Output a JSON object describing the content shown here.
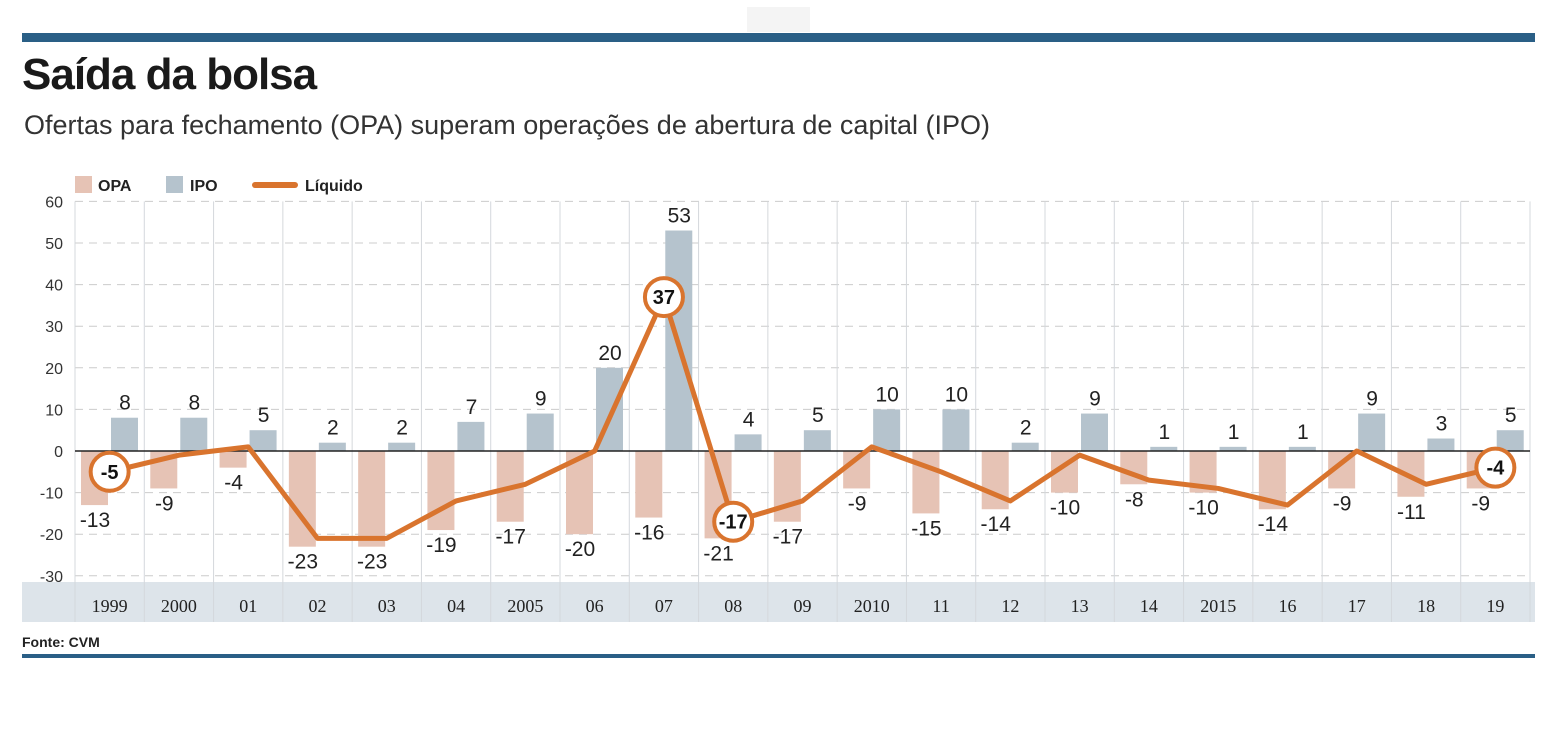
{
  "header": {
    "title": "Saída da bolsa",
    "subtitle": "Ofertas para fechamento (OPA) superam operações de abertura de capital (IPO)"
  },
  "footer": {
    "source": "Fonte: CVM"
  },
  "chart_data": {
    "type": "bar",
    "title": "Saída da bolsa",
    "subtitle": "Ofertas para fechamento (OPA) superam operações de abertura de capital (IPO)",
    "categories": [
      "1999",
      "2000",
      "01",
      "02",
      "03",
      "04",
      "2005",
      "06",
      "07",
      "08",
      "09",
      "2010",
      "11",
      "12",
      "13",
      "14",
      "2015",
      "16",
      "17",
      "18",
      "19"
    ],
    "series": [
      {
        "name": "OPA",
        "type": "bar",
        "color": "#e6c3b5",
        "values": [
          -13,
          -9,
          -4,
          -23,
          -23,
          -19,
          -17,
          -20,
          -16,
          -21,
          -17,
          -9,
          -15,
          -14,
          -10,
          -8,
          -10,
          -14,
          -9,
          -11,
          -9
        ]
      },
      {
        "name": "IPO",
        "type": "bar",
        "color": "#b5c3cd",
        "values": [
          8,
          8,
          5,
          2,
          2,
          7,
          9,
          20,
          53,
          4,
          5,
          10,
          10,
          2,
          9,
          1,
          1,
          1,
          9,
          3,
          5
        ]
      },
      {
        "name": "Líquido",
        "type": "line",
        "color": "#d9742e",
        "values": [
          -5,
          -1,
          1,
          -21,
          -21,
          -12,
          -8,
          0,
          37,
          -17,
          -12,
          1,
          -5,
          -12,
          -1,
          -7,
          -9,
          -13,
          0,
          -8,
          -4
        ],
        "highlighted": {
          "1999": "-5",
          "07": "37",
          "08": "-17",
          "19": "-4"
        }
      }
    ],
    "yticks": [
      60,
      50,
      40,
      30,
      20,
      10,
      0,
      -10,
      -20,
      -30
    ],
    "ylim": [
      -30,
      60
    ],
    "grid": true,
    "legend": "top-left"
  }
}
